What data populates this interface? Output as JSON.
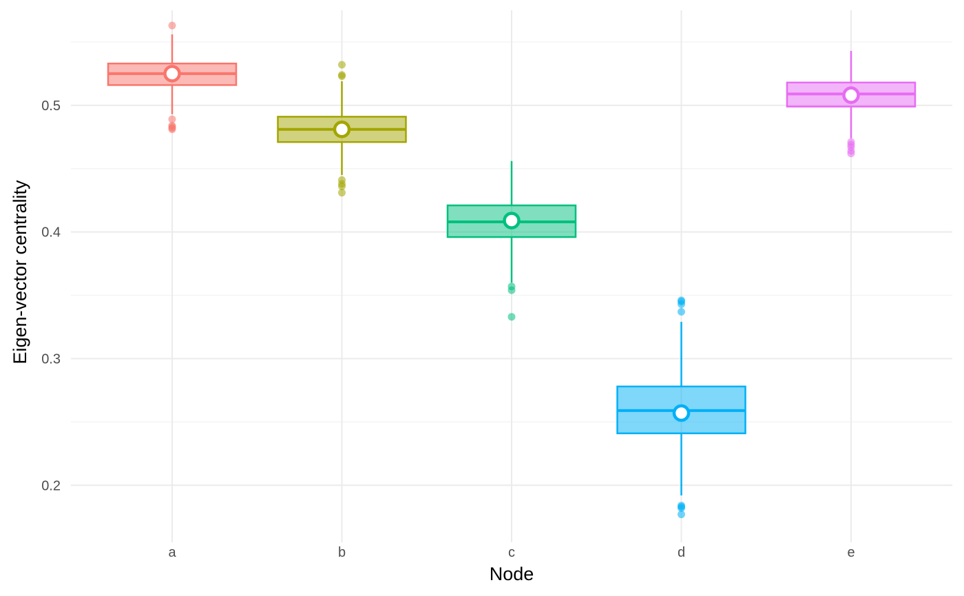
{
  "chart_data": {
    "type": "boxplot",
    "xlabel": "Node",
    "ylabel": "Eigen-vector centrality",
    "ylim": [
      0.155,
      0.575
    ],
    "yticks": [
      0.2,
      0.3,
      0.4,
      0.5
    ],
    "ytick_labels": [
      "0.2",
      "0.3",
      "0.4",
      "0.5"
    ],
    "grid": true,
    "legend": "none",
    "categories": [
      "a",
      "b",
      "c",
      "d",
      "e"
    ],
    "series": [
      {
        "category": "a",
        "color": "#F8766D",
        "q1": 0.516,
        "median": 0.525,
        "q3": 0.533,
        "whisker_low": 0.493,
        "whisker_high": 0.556,
        "mean": 0.525,
        "outliers": [
          0.563,
          0.489,
          0.484,
          0.483,
          0.482,
          0.481
        ]
      },
      {
        "category": "b",
        "color": "#A3A500",
        "q1": 0.471,
        "median": 0.481,
        "q3": 0.491,
        "whisker_low": 0.445,
        "whisker_high": 0.519,
        "mean": 0.481,
        "outliers": [
          0.532,
          0.524,
          0.523,
          0.441,
          0.438,
          0.436,
          0.431
        ]
      },
      {
        "category": "c",
        "color": "#00BF7D",
        "q1": 0.396,
        "median": 0.408,
        "q3": 0.421,
        "whisker_low": 0.36,
        "whisker_high": 0.456,
        "mean": 0.409,
        "outliers": [
          0.357,
          0.354,
          0.333
        ]
      },
      {
        "category": "d",
        "color": "#00B0F6",
        "q1": 0.241,
        "median": 0.259,
        "q3": 0.278,
        "whisker_low": 0.192,
        "whisker_high": 0.329,
        "mean": 0.257,
        "outliers": [
          0.346,
          0.345,
          0.343,
          0.337,
          0.184,
          0.183,
          0.182,
          0.177
        ]
      },
      {
        "category": "e",
        "color": "#E76BF3",
        "q1": 0.499,
        "median": 0.509,
        "q3": 0.518,
        "whisker_low": 0.474,
        "whisker_high": 0.543,
        "mean": 0.508,
        "outliers": [
          0.471,
          0.469,
          0.467,
          0.464,
          0.462
        ]
      }
    ]
  }
}
